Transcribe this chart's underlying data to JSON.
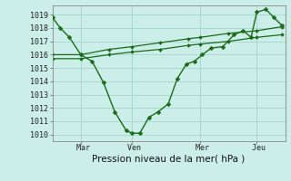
{
  "title": "Pression niveau de la mer( hPa )",
  "bg_color": "#cceee8",
  "grid_color": "#aad8d0",
  "line_color": "#1a6b1a",
  "xlim": [
    0,
    20.5
  ],
  "ylim": [
    1009.5,
    1019.7
  ],
  "yticks": [
    1010,
    1011,
    1012,
    1013,
    1014,
    1015,
    1016,
    1017,
    1018,
    1019
  ],
  "xtick_labels": [
    " Mar",
    " Ven",
    " Mer",
    " Jeu"
  ],
  "xtick_positions": [
    2.5,
    7,
    13,
    18
  ],
  "vlines": [
    2.5,
    7,
    13,
    18
  ],
  "line1_x": [
    0.0,
    0.7,
    1.5,
    2.5,
    3.5,
    4.5,
    5.5,
    6.5,
    7.0,
    7.7,
    8.5,
    9.3,
    10.2,
    11.0,
    11.8,
    12.5,
    13.2,
    14.0,
    15.0,
    16.0,
    16.8,
    17.5,
    18.0,
    18.8,
    19.5,
    20.2
  ],
  "line1_y": [
    1018.8,
    1018.0,
    1017.3,
    1016.0,
    1015.5,
    1013.9,
    1011.7,
    1010.3,
    1010.1,
    1010.1,
    1011.3,
    1011.7,
    1012.3,
    1014.2,
    1015.3,
    1015.5,
    1016.0,
    1016.5,
    1016.6,
    1017.5,
    1017.8,
    1017.3,
    1019.2,
    1019.4,
    1018.8,
    1018.2
  ],
  "line2_x": [
    0.0,
    2.5,
    5.0,
    7.0,
    9.5,
    12.0,
    13.0,
    15.5,
    18.0,
    20.2
  ],
  "line2_y": [
    1016.0,
    1016.0,
    1016.4,
    1016.6,
    1016.9,
    1017.2,
    1017.3,
    1017.6,
    1017.8,
    1018.1
  ],
  "line3_x": [
    0.0,
    2.5,
    5.0,
    7.0,
    9.5,
    12.0,
    13.0,
    15.5,
    18.0,
    20.2
  ],
  "line3_y": [
    1015.7,
    1015.7,
    1016.0,
    1016.2,
    1016.4,
    1016.7,
    1016.8,
    1017.0,
    1017.3,
    1017.5
  ]
}
